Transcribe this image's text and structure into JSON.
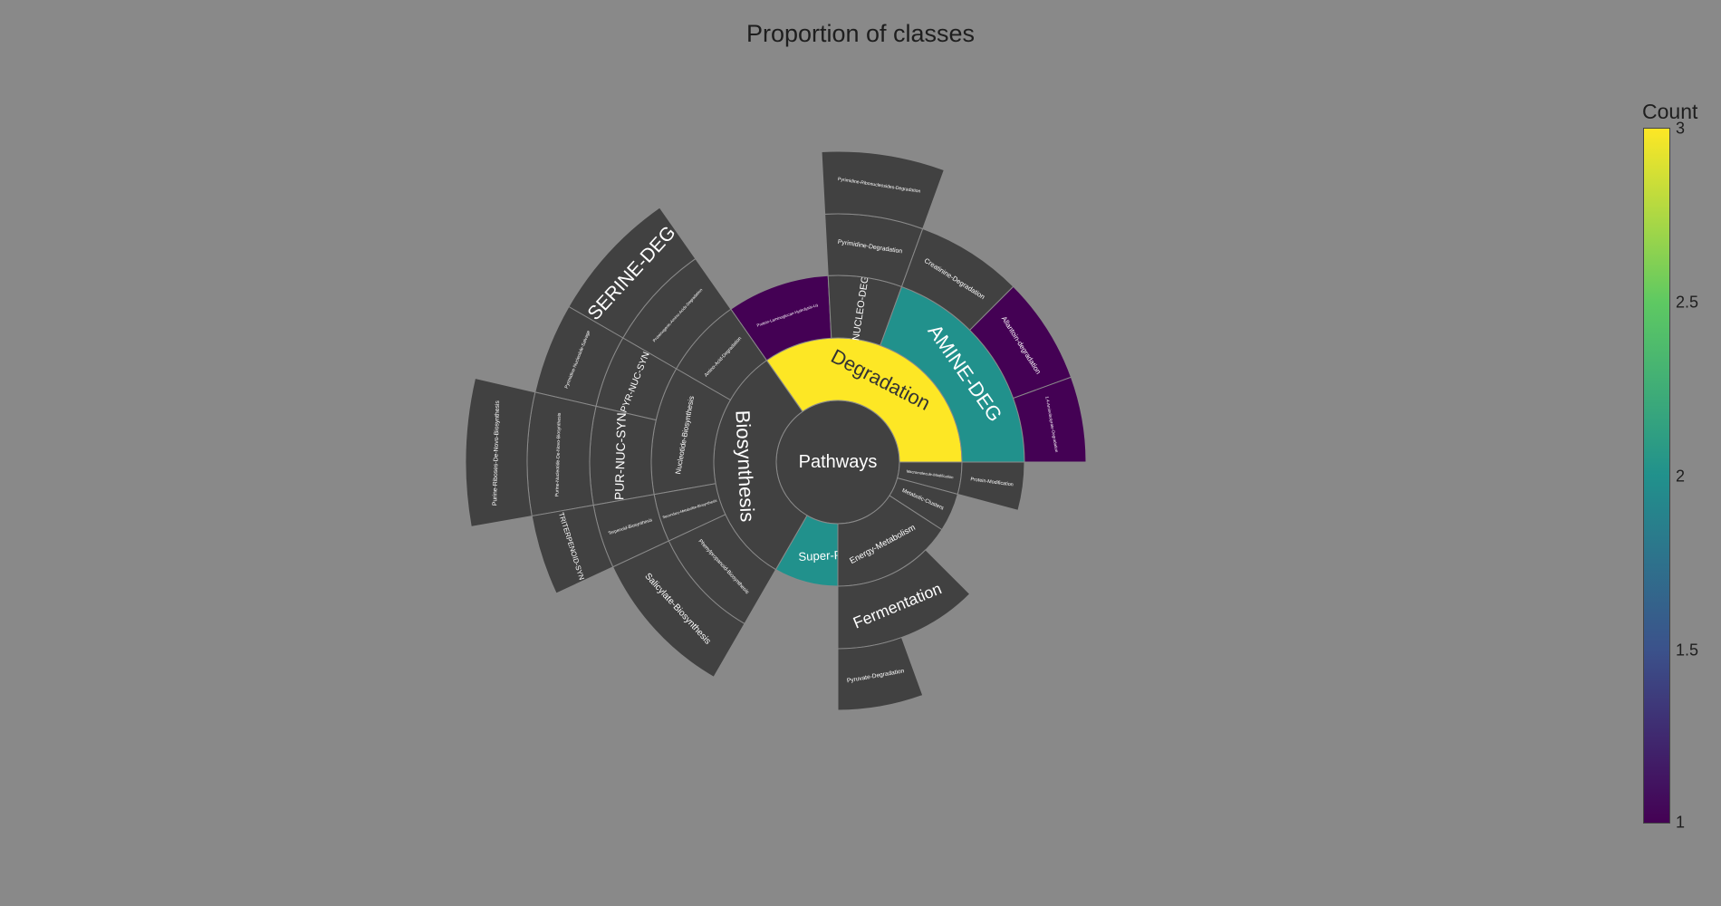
{
  "chart_data": {
    "type": "sunburst",
    "title": "Proportion of classes",
    "colorscale": {
      "name": "Viridis",
      "title": "Count",
      "range": [
        1,
        3
      ],
      "ticks": [
        "3",
        "2.5",
        "2",
        "1.5",
        "1"
      ],
      "tick_values": [
        3,
        2.5,
        2,
        1.5,
        1
      ],
      "colors": [
        "#440154",
        "#3b528b",
        "#21918c",
        "#5ec962",
        "#fde725"
      ]
    },
    "other_color": "#414141",
    "root": {
      "label": "Pathways",
      "children": [
        {
          "label": "Degradation",
          "count": 3,
          "children": [
            {
              "label": "Protein-Laminoglucan-Hydrolysis-Lq",
              "count": 1
            },
            {
              "label": "NUCLEO-DEG",
              "children": [
                {
                  "label": "Pyrimidine-Degradation",
                  "children": [
                    {
                      "label": "Pyrimidine-Ribonucleosides-Degradation"
                    }
                  ]
                }
              ]
            },
            {
              "label": "AMINE-DEG",
              "count": 2,
              "children": [
                {
                  "label": "Creatinine-Degradation"
                },
                {
                  "label": "Allantoin-degradation",
                  "count": 1
                },
                {
                  "label": "1,4-Aminobutyrate-Degradation",
                  "count": 1
                }
              ]
            }
          ]
        },
        {
          "label": "Super-Pathways",
          "count": 2,
          "children": []
        },
        {
          "label": "Macromolecule-Modification",
          "children": [
            {
              "label": "Protein-Modification"
            }
          ]
        },
        {
          "label": "Metabolic-Clusters",
          "children": []
        },
        {
          "label": "Energy-Metabolism",
          "children": [
            {
              "label": "Fermentation",
              "children": [
                {
                  "label": "Pyruvate-Degradation"
                }
              ]
            }
          ]
        },
        {
          "label": "Biosynthesis",
          "children": [
            {
              "label": "Amino-Acid-Degradation",
              "children": [
                {
                  "label": "Proteinogenic-Amino-Acids-Degradation",
                  "children": [
                    {
                      "label": "SERINE-DEG"
                    }
                  ]
                }
              ]
            },
            {
              "label": "Nucleotide-Biosynthesis",
              "children": [
                {
                  "label": "PYR-NUC-SYN",
                  "children": [
                    {
                      "label": "Pyrimidine-Nucleotide-Salvage"
                    }
                  ]
                },
                {
                  "label": "PUR-NUC-SYN",
                  "children": [
                    {
                      "label": "Purine-Nucleotide-De-Novo-Biosynthesis",
                      "children": [
                        {
                          "label": "Purine-Riboses-De-Novo-Biosynthesis"
                        }
                      ]
                    }
                  ]
                }
              ]
            },
            {
              "label": "Secondary-Metabolite-Biosynthesis",
              "children": [
                {
                  "label": "Terpenoid-Biosynthesis",
                  "children": [
                    {
                      "label": "TRITERPENOID-SYN"
                    }
                  ]
                }
              ]
            },
            {
              "label": "Phenylpropanoid-Biosynthesis",
              "children": [
                {
                  "label": "Salicylate-Biosynthesis"
                }
              ]
            }
          ]
        }
      ]
    }
  }
}
